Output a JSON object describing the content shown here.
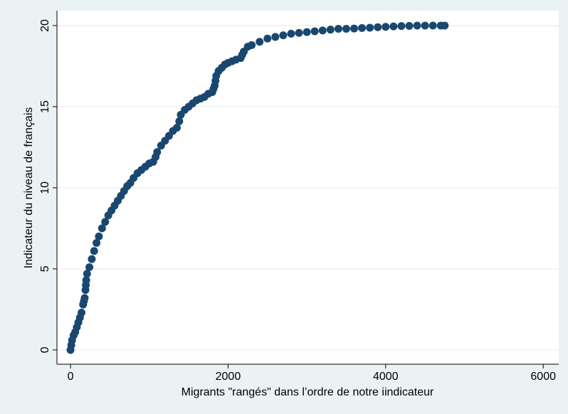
{
  "chart_data": {
    "type": "scatter",
    "xlabel": "Migrants \"rangés\" dans l’ordre de notre iindicateur",
    "ylabel": "Indicateur du niveau de français",
    "color": "#1a476f",
    "grid": true,
    "xlim": [
      -172,
      6197
    ],
    "ylim": [
      -0.88,
      20.92
    ],
    "xticks": [
      0,
      2000,
      4000,
      6000
    ],
    "yticks": [
      0,
      5,
      10,
      15,
      20
    ],
    "x": [
      0,
      10,
      20,
      40,
      60,
      80,
      100,
      120,
      140,
      160,
      170,
      180,
      190,
      195,
      200,
      210,
      240,
      270,
      300,
      330,
      360,
      400,
      440,
      480,
      520,
      560,
      600,
      640,
      680,
      720,
      760,
      800,
      850,
      900,
      950,
      1000,
      1050,
      1080,
      1100,
      1150,
      1200,
      1250,
      1300,
      1350,
      1380,
      1400,
      1450,
      1500,
      1550,
      1600,
      1650,
      1700,
      1750,
      1800,
      1815,
      1830,
      1840,
      1850,
      1880,
      1920,
      1960,
      2000,
      2050,
      2100,
      2160,
      2180,
      2200,
      2250,
      2300,
      2400,
      2500,
      2600,
      2700,
      2800,
      2900,
      3000,
      3100,
      3200,
      3300,
      3400,
      3500,
      3600,
      3700,
      3800,
      3900,
      4000,
      4100,
      4200,
      4300,
      4400,
      4500,
      4600,
      4700,
      4750
    ],
    "values": [
      0,
      0.3,
      0.6,
      0.9,
      1.1,
      1.4,
      1.7,
      2.0,
      2.3,
      2.8,
      3.0,
      3.2,
      3.7,
      4.0,
      4.3,
      4.7,
      5.1,
      5.6,
      6.1,
      6.6,
      7.0,
      7.5,
      7.9,
      8.3,
      8.6,
      8.9,
      9.2,
      9.5,
      9.8,
      10.1,
      10.3,
      10.6,
      10.9,
      11.1,
      11.3,
      11.5,
      11.6,
      11.9,
      12.2,
      12.6,
      12.9,
      13.2,
      13.5,
      13.7,
      14.1,
      14.5,
      14.8,
      15.0,
      15.2,
      15.4,
      15.5,
      15.6,
      15.8,
      15.9,
      16.1,
      16.3,
      16.6,
      16.9,
      17.2,
      17.4,
      17.6,
      17.7,
      17.8,
      17.9,
      18.0,
      18.2,
      18.4,
      18.7,
      18.8,
      19.0,
      19.2,
      19.3,
      19.4,
      19.5,
      19.55,
      19.6,
      19.65,
      19.7,
      19.75,
      19.8,
      19.8,
      19.82,
      19.85,
      19.87,
      19.9,
      19.92,
      19.95,
      19.97,
      19.98,
      20,
      20,
      20,
      20,
      20
    ]
  }
}
